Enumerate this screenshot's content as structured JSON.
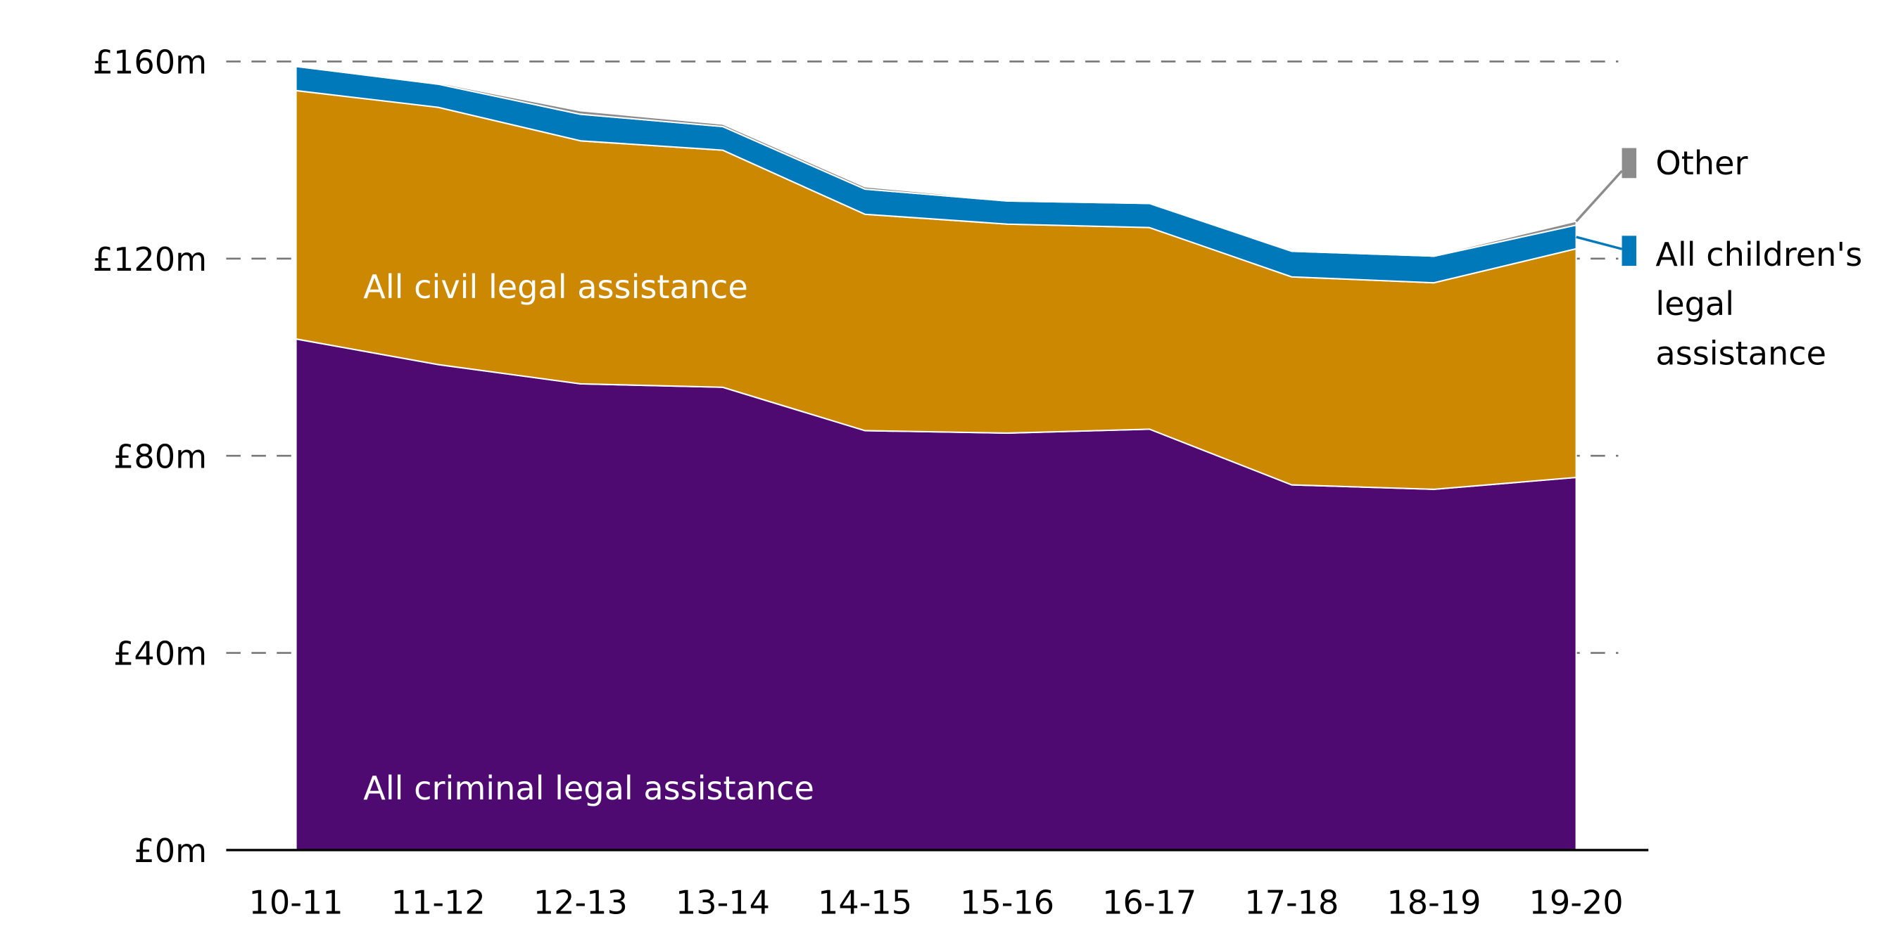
{
  "chart_data": {
    "type": "area",
    "stacked": true,
    "categories": [
      "10-11",
      "11-12",
      "12-13",
      "13-14",
      "14-15",
      "15-16",
      "16-17",
      "17-18",
      "18-19",
      "19-20"
    ],
    "series": [
      {
        "name": "All criminal legal assistance",
        "color": "#4f0a72",
        "values": [
          103.7,
          98.5,
          94.6,
          93.9,
          85.1,
          84.6,
          85.4,
          74.1,
          73.2,
          75.6
        ]
      },
      {
        "name": "All civil legal assistance",
        "color": "#cc8800",
        "values": [
          50.4,
          52.2,
          49.3,
          48.1,
          43.9,
          42.4,
          40.9,
          42.2,
          41.9,
          46.4
        ]
      },
      {
        "name": "All children's legal assistance",
        "color": "#0079bb",
        "values": [
          4.9,
          4.7,
          5.4,
          4.8,
          5.1,
          4.7,
          4.9,
          5.2,
          5.4,
          4.8
        ]
      },
      {
        "name": "Other",
        "color": "#8c8c8c",
        "values": [
          0.1,
          0.3,
          0.7,
          0.5,
          0.5,
          0.2,
          0.2,
          0.2,
          0.2,
          0.8
        ]
      }
    ],
    "ylim": [
      0,
      160
    ],
    "yticks": [
      0,
      40,
      80,
      120,
      160
    ],
    "ytick_labels": [
      "£0m",
      "£40m",
      "£80m",
      "£120m",
      "£160m"
    ],
    "grid": "horizontal dashed",
    "legend": "right, direct labels",
    "labels": {
      "criminal": "All criminal legal assistance",
      "civil": "All civil legal assistance",
      "other": "Other",
      "children": [
        "All children's",
        "legal",
        "assistance"
      ]
    }
  }
}
